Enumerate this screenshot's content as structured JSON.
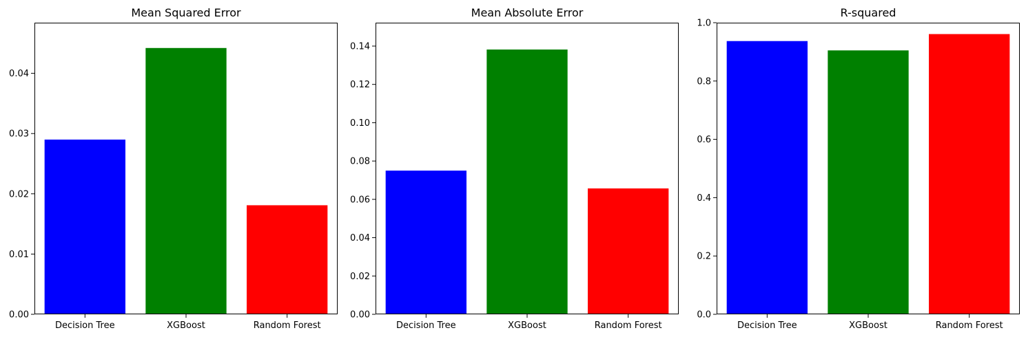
{
  "chart_data": [
    {
      "type": "bar",
      "title": "Mean Squared Error",
      "xlabel": "",
      "ylabel": "",
      "categories": [
        "Decision Tree",
        "XGBoost",
        "Random Forest"
      ],
      "values": [
        0.029,
        0.0442,
        0.0181
      ],
      "colors": [
        "#0000ff",
        "#008000",
        "#ff0000"
      ],
      "ylim": [
        0,
        0.0484
      ],
      "yticks": [
        0.0,
        0.01,
        0.02,
        0.03,
        0.04
      ],
      "ytick_labels": [
        "0.00",
        "0.01",
        "0.02",
        "0.03",
        "0.04"
      ],
      "grid": false
    },
    {
      "type": "bar",
      "title": "Mean Absolute Error",
      "xlabel": "",
      "ylabel": "",
      "categories": [
        "Decision Tree",
        "XGBoost",
        "Random Forest"
      ],
      "values": [
        0.075,
        0.1382,
        0.0657
      ],
      "colors": [
        "#0000ff",
        "#008000",
        "#ff0000"
      ],
      "ylim": [
        0,
        0.1522
      ],
      "yticks": [
        0.0,
        0.02,
        0.04,
        0.06,
        0.08,
        0.1,
        0.12,
        0.14
      ],
      "ytick_labels": [
        "0.00",
        "0.02",
        "0.04",
        "0.06",
        "0.08",
        "0.10",
        "0.12",
        "0.14"
      ],
      "grid": false
    },
    {
      "type": "bar",
      "title": "R-squared",
      "xlabel": "",
      "ylabel": "",
      "categories": [
        "Decision Tree",
        "XGBoost",
        "Random Forest"
      ],
      "values": [
        0.937,
        0.905,
        0.961
      ],
      "colors": [
        "#0000ff",
        "#008000",
        "#ff0000"
      ],
      "ylim": [
        0,
        1.0
      ],
      "yticks": [
        0.0,
        0.2,
        0.4,
        0.6,
        0.8,
        1.0
      ],
      "ytick_labels": [
        "0.0",
        "0.2",
        "0.4",
        "0.6",
        "0.8",
        "1.0"
      ],
      "grid": false
    }
  ]
}
